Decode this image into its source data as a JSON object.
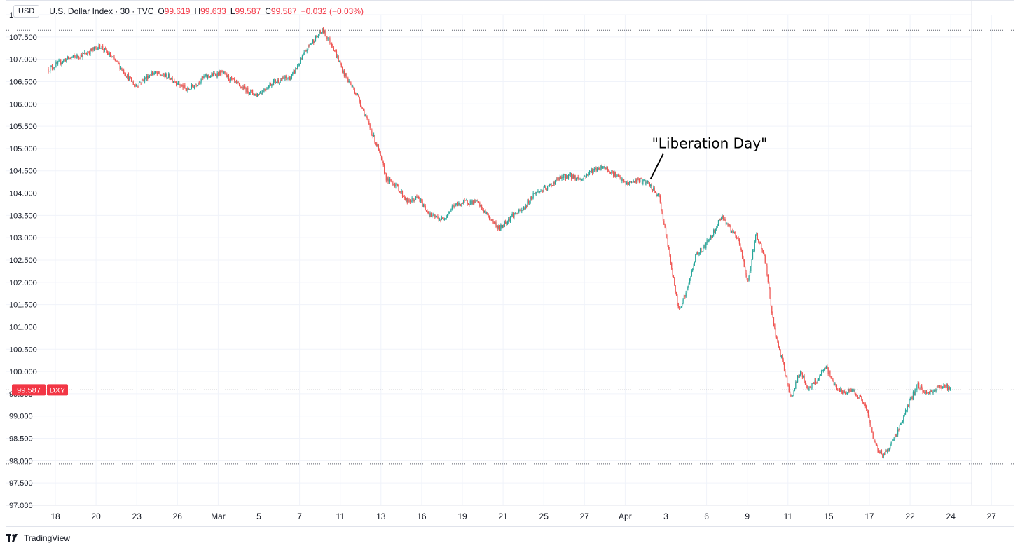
{
  "header": {
    "currency": "USD",
    "title": "U.S. Dollar Index · 30 · TVC",
    "open_key": "O",
    "open_value": "99.619",
    "high_key": "H",
    "high_value": "99.633",
    "low_key": "L",
    "low_value": "99.587",
    "close_key": "C",
    "close_value": "99.587",
    "change": "−0.032 (−0.03%)"
  },
  "price_tag": {
    "value": "99.587",
    "symbol": "DXY"
  },
  "annotation": "\"Liberation Day\"",
  "footer": {
    "brand": "TradingView"
  },
  "colors": {
    "up": "#26a69a",
    "down": "#ef5350",
    "grid": "#f0f3fa",
    "tag": "#f23645",
    "text": "#131722"
  },
  "chart_data": {
    "type": "candlestick",
    "title": "U.S. Dollar Index · 30 · TVC",
    "interval": "30",
    "ylim": [
      97.0,
      108.0
    ],
    "y_ticks": [
      "97.000",
      "97.500",
      "98.000",
      "98.500",
      "99.000",
      "99.500",
      "100.000",
      "100.500",
      "101.000",
      "101.500",
      "102.000",
      "102.500",
      "103.000",
      "103.500",
      "104.000",
      "104.500",
      "105.000",
      "105.500",
      "106.000",
      "106.500",
      "107.000",
      "107.500",
      "108.000"
    ],
    "x_ticks": [
      "18",
      "20",
      "23",
      "26",
      "Mar",
      "5",
      "7",
      "11",
      "13",
      "16",
      "19",
      "21",
      "25",
      "27",
      "Apr",
      "3",
      "6",
      "9",
      "11",
      "15",
      "17",
      "22",
      "24",
      "27"
    ],
    "grid": true,
    "price_axis": "right",
    "reference_lines": {
      "high": 107.65,
      "low": 97.93,
      "last": 99.587
    },
    "annotations": [
      {
        "text": "\"Liberation Day\"",
        "at": "Apr 2",
        "price": 104.25
      }
    ],
    "path": [
      [
        0,
        106.78
      ],
      [
        1,
        107.0
      ],
      [
        2,
        107.1
      ],
      [
        3,
        107.3
      ],
      [
        4,
        106.9
      ],
      [
        5,
        106.4
      ],
      [
        6,
        106.7
      ],
      [
        7,
        106.6
      ],
      [
        8,
        106.3
      ],
      [
        9,
        106.6
      ],
      [
        10,
        106.7
      ],
      [
        11,
        106.4
      ],
      [
        12,
        106.2
      ],
      [
        13,
        106.5
      ],
      [
        14,
        106.6
      ],
      [
        15,
        107.3
      ],
      [
        15.8,
        107.65
      ],
      [
        16.4,
        107.3
      ],
      [
        17,
        106.7
      ],
      [
        17.8,
        106.2
      ],
      [
        18.4,
        105.6
      ],
      [
        19,
        105.0
      ],
      [
        19.5,
        104.3
      ],
      [
        20,
        104.2
      ],
      [
        20.7,
        103.8
      ],
      [
        21.3,
        103.9
      ],
      [
        22,
        103.5
      ],
      [
        22.7,
        103.4
      ],
      [
        23.3,
        103.7
      ],
      [
        24,
        103.8
      ],
      [
        24.7,
        103.8
      ],
      [
        25.3,
        103.5
      ],
      [
        26,
        103.2
      ],
      [
        26.7,
        103.5
      ],
      [
        27.3,
        103.6
      ],
      [
        28,
        104.0
      ],
      [
        28.7,
        104.1
      ],
      [
        29.3,
        104.3
      ],
      [
        30,
        104.4
      ],
      [
        30.7,
        104.3
      ],
      [
        31.3,
        104.5
      ],
      [
        32,
        104.6
      ],
      [
        32.7,
        104.4
      ],
      [
        33.3,
        104.2
      ],
      [
        34,
        104.3
      ],
      [
        34.6,
        104.2
      ],
      [
        35.2,
        103.9
      ],
      [
        35.8,
        102.6
      ],
      [
        36.3,
        101.4
      ],
      [
        36.8,
        101.8
      ],
      [
        37.3,
        102.6
      ],
      [
        37.8,
        102.8
      ],
      [
        38.3,
        103.1
      ],
      [
        38.8,
        103.5
      ],
      [
        39.3,
        103.2
      ],
      [
        39.8,
        102.9
      ],
      [
        40.3,
        102.0
      ],
      [
        40.8,
        103.1
      ],
      [
        41.3,
        102.5
      ],
      [
        41.8,
        101.0
      ],
      [
        42.3,
        100.2
      ],
      [
        42.8,
        99.4
      ],
      [
        43.3,
        100.0
      ],
      [
        43.8,
        99.6
      ],
      [
        44.3,
        99.8
      ],
      [
        44.8,
        100.1
      ],
      [
        45.3,
        99.7
      ],
      [
        45.8,
        99.5
      ],
      [
        46.3,
        99.6
      ],
      [
        46.8,
        99.4
      ],
      [
        47.1,
        99.2
      ],
      [
        47.6,
        98.4
      ],
      [
        48.1,
        98.1
      ],
      [
        48.6,
        98.4
      ],
      [
        49.1,
        98.8
      ],
      [
        49.6,
        99.3
      ],
      [
        50.1,
        99.7
      ],
      [
        50.6,
        99.5
      ],
      [
        51.1,
        99.6
      ],
      [
        51.6,
        99.7
      ],
      [
        52.0,
        99.587
      ]
    ],
    "gaps": [
      47.1
    ],
    "last": 99.587
  }
}
